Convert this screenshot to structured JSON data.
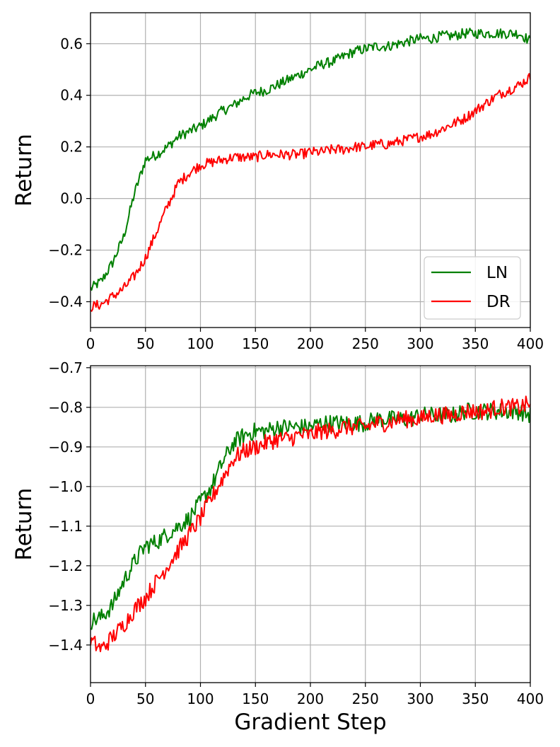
{
  "figure": {
    "xlabel": "Gradient Step"
  },
  "chart_data": [
    {
      "type": "line",
      "panel": "top",
      "xlabel": "",
      "ylabel": "Return",
      "xlim": [
        0,
        400
      ],
      "ylim": [
        -0.5,
        0.72
      ],
      "xticks": [
        "0",
        "50",
        "100",
        "150",
        "200",
        "250",
        "300",
        "350",
        "400"
      ],
      "yticks": [
        "−0.4",
        "−0.2",
        "0.0",
        "0.2",
        "0.4",
        "0.6"
      ],
      "grid": true,
      "legend": {
        "placement": "lower-right",
        "entries": [
          "LN",
          "DR"
        ]
      },
      "series": [
        {
          "name": "LN",
          "color": "#008000",
          "x": [
            0,
            10,
            20,
            30,
            40,
            50,
            60,
            70,
            80,
            90,
            100,
            110,
            120,
            130,
            140,
            150,
            160,
            170,
            180,
            190,
            200,
            210,
            220,
            230,
            240,
            250,
            260,
            270,
            280,
            290,
            300,
            310,
            320,
            330,
            340,
            350,
            360,
            370,
            380,
            390,
            400
          ],
          "y": [
            -0.35,
            -0.32,
            -0.25,
            -0.15,
            0.02,
            0.15,
            0.17,
            0.2,
            0.24,
            0.26,
            0.28,
            0.31,
            0.34,
            0.36,
            0.39,
            0.41,
            0.42,
            0.44,
            0.46,
            0.48,
            0.5,
            0.52,
            0.53,
            0.55,
            0.57,
            0.58,
            0.59,
            0.59,
            0.6,
            0.61,
            0.62,
            0.62,
            0.63,
            0.63,
            0.64,
            0.64,
            0.64,
            0.64,
            0.64,
            0.64,
            0.61
          ]
        },
        {
          "name": "DR",
          "color": "#ff0000",
          "x": [
            0,
            10,
            20,
            30,
            40,
            50,
            60,
            70,
            80,
            90,
            100,
            110,
            120,
            130,
            140,
            150,
            160,
            170,
            180,
            190,
            200,
            210,
            220,
            230,
            240,
            250,
            260,
            270,
            280,
            290,
            300,
            310,
            320,
            330,
            340,
            350,
            360,
            370,
            380,
            390,
            400
          ],
          "y": [
            -0.42,
            -0.41,
            -0.38,
            -0.35,
            -0.3,
            -0.23,
            -0.13,
            -0.03,
            0.06,
            0.1,
            0.13,
            0.14,
            0.15,
            0.16,
            0.16,
            0.16,
            0.17,
            0.17,
            0.17,
            0.17,
            0.18,
            0.18,
            0.19,
            0.19,
            0.2,
            0.2,
            0.21,
            0.21,
            0.22,
            0.23,
            0.24,
            0.25,
            0.27,
            0.29,
            0.31,
            0.34,
            0.37,
            0.4,
            0.42,
            0.44,
            0.47
          ]
        }
      ]
    },
    {
      "type": "line",
      "panel": "bottom",
      "xlabel": "Gradient Step",
      "ylabel": "Return",
      "xlim": [
        0,
        400
      ],
      "ylim": [
        -1.495,
        -0.695
      ],
      "xticks": [
        "0",
        "50",
        "100",
        "150",
        "200",
        "250",
        "300",
        "350",
        "400"
      ],
      "yticks": [
        "−1.4",
        "−1.3",
        "−1.2",
        "−1.1",
        "−1.0",
        "−0.9",
        "−0.8",
        "−0.7"
      ],
      "grid": true,
      "series": [
        {
          "name": "LN",
          "color": "#008000",
          "x": [
            0,
            10,
            20,
            30,
            40,
            50,
            60,
            70,
            80,
            90,
            100,
            110,
            120,
            130,
            140,
            150,
            160,
            170,
            180,
            190,
            200,
            210,
            220,
            230,
            240,
            250,
            260,
            270,
            280,
            290,
            300,
            310,
            320,
            330,
            340,
            350,
            360,
            370,
            380,
            390,
            400
          ],
          "y": [
            -1.34,
            -1.33,
            -1.3,
            -1.24,
            -1.19,
            -1.15,
            -1.14,
            -1.12,
            -1.1,
            -1.08,
            -1.04,
            -1.0,
            -0.94,
            -0.89,
            -0.87,
            -0.86,
            -0.86,
            -0.85,
            -0.85,
            -0.85,
            -0.85,
            -0.84,
            -0.84,
            -0.84,
            -0.84,
            -0.84,
            -0.83,
            -0.83,
            -0.83,
            -0.83,
            -0.82,
            -0.82,
            -0.82,
            -0.82,
            -0.81,
            -0.81,
            -0.81,
            -0.81,
            -0.81,
            -0.81,
            -0.82
          ]
        },
        {
          "name": "DR",
          "color": "#ff0000",
          "x": [
            0,
            10,
            20,
            30,
            40,
            50,
            60,
            70,
            80,
            90,
            100,
            110,
            120,
            130,
            140,
            150,
            160,
            170,
            180,
            190,
            200,
            210,
            220,
            230,
            240,
            250,
            260,
            270,
            280,
            290,
            300,
            310,
            320,
            330,
            340,
            350,
            360,
            370,
            380,
            390,
            400
          ],
          "y": [
            -1.39,
            -1.41,
            -1.38,
            -1.35,
            -1.31,
            -1.28,
            -1.24,
            -1.2,
            -1.16,
            -1.12,
            -1.08,
            -1.03,
            -0.98,
            -0.93,
            -0.91,
            -0.9,
            -0.89,
            -0.88,
            -0.88,
            -0.87,
            -0.87,
            -0.86,
            -0.86,
            -0.85,
            -0.85,
            -0.85,
            -0.84,
            -0.84,
            -0.83,
            -0.83,
            -0.83,
            -0.82,
            -0.82,
            -0.82,
            -0.81,
            -0.81,
            -0.81,
            -0.8,
            -0.8,
            -0.8,
            -0.79
          ]
        }
      ]
    }
  ]
}
